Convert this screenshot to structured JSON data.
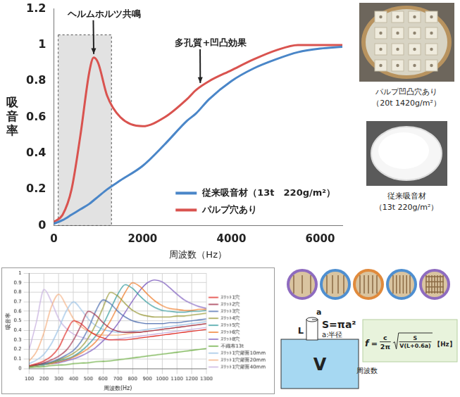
{
  "chart_data": [
    {
      "type": "line",
      "x_label": "周波数（Hz）",
      "y_label": "吸音率",
      "x": [
        0,
        200,
        400,
        600,
        800,
        900,
        1000,
        1200,
        1500,
        2000,
        2500,
        3000,
        3200,
        3500,
        4000,
        4500,
        5000,
        5500,
        6000,
        6500
      ],
      "series": [
        {
          "name": "従来吸音材（13t　220g/m²）",
          "color": "#4a86c8",
          "values": [
            0.01,
            0.03,
            0.06,
            0.09,
            0.12,
            0.14,
            0.16,
            0.2,
            0.25,
            0.33,
            0.45,
            0.58,
            0.62,
            0.7,
            0.8,
            0.87,
            0.92,
            0.96,
            0.98,
            0.99
          ]
        },
        {
          "name": "パルプ穴あり",
          "color": "#d9534f",
          "values": [
            0.02,
            0.06,
            0.2,
            0.5,
            0.85,
            0.93,
            0.9,
            0.72,
            0.6,
            0.55,
            0.6,
            0.7,
            0.75,
            0.8,
            0.86,
            0.92,
            0.97,
            1,
            1,
            1
          ]
        }
      ],
      "xlim": [
        0,
        6500
      ],
      "xticks": [
        0,
        2000,
        4000,
        6000
      ],
      "ylim": [
        0,
        1.2
      ],
      "yticks": [
        0,
        0.2,
        0.4,
        0.6,
        0.8,
        1,
        1.2
      ],
      "grid": false,
      "legend": "lower right",
      "annotations": [
        {
          "text": "ヘルムホルツ共鳴",
          "x": 900,
          "y": 0.93
        },
        {
          "text": "多孔質+凹凸効果",
          "x": 3300,
          "y": 0.77
        }
      ]
    },
    {
      "type": "line",
      "x_label": "周波数(Hz)",
      "y_label": "吸音率",
      "x": [
        100,
        150,
        200,
        250,
        300,
        350,
        400,
        450,
        500,
        550,
        600,
        650,
        700,
        750,
        800,
        850,
        900,
        950,
        1000,
        1050,
        1100,
        1150,
        1200,
        1250,
        1300
      ],
      "series": [
        {
          "name": "ｽﾘｯﾄ1穴",
          "color": "#e0302a",
          "values": [
            0.03,
            0.05,
            0.08,
            0.13,
            0.22,
            0.38,
            0.5,
            0.47,
            0.4,
            0.35,
            0.32,
            0.3,
            0.3,
            0.3,
            0.31,
            0.32,
            0.33,
            0.34,
            0.35,
            0.36,
            0.37,
            0.38,
            0.39,
            0.4,
            0.41
          ]
        },
        {
          "name": "ｽﾘｯﾄ2穴",
          "color": "#a0304a",
          "values": [
            0.03,
            0.04,
            0.06,
            0.09,
            0.13,
            0.19,
            0.3,
            0.45,
            0.6,
            0.56,
            0.48,
            0.42,
            0.39,
            0.38,
            0.38,
            0.38,
            0.39,
            0.4,
            0.41,
            0.42,
            0.43,
            0.44,
            0.45,
            0.46,
            0.47
          ]
        },
        {
          "name": "ｽﾘｯﾄ3穴",
          "color": "#4f6fb0",
          "values": [
            0.03,
            0.04,
            0.05,
            0.07,
            0.1,
            0.14,
            0.19,
            0.28,
            0.42,
            0.6,
            0.72,
            0.68,
            0.6,
            0.54,
            0.5,
            0.48,
            0.47,
            0.47,
            0.47,
            0.48,
            0.48,
            0.49,
            0.5,
            0.51,
            0.52
          ]
        },
        {
          "name": "ｽﾘｯﾄ4穴",
          "color": "#9a9a3a",
          "values": [
            0.02,
            0.03,
            0.05,
            0.06,
            0.09,
            0.12,
            0.16,
            0.22,
            0.32,
            0.46,
            0.64,
            0.8,
            0.76,
            0.68,
            0.61,
            0.57,
            0.55,
            0.54,
            0.54,
            0.54,
            0.55,
            0.55,
            0.56,
            0.57,
            0.58
          ]
        },
        {
          "name": "ｽﾘｯﾄ5穴",
          "color": "#3a9ea0",
          "values": [
            0.02,
            0.03,
            0.04,
            0.06,
            0.08,
            0.1,
            0.13,
            0.18,
            0.25,
            0.34,
            0.46,
            0.62,
            0.78,
            0.88,
            0.84,
            0.76,
            0.69,
            0.64,
            0.61,
            0.6,
            0.59,
            0.59,
            0.6,
            0.6,
            0.61
          ]
        },
        {
          "name": "ｽﾘｯﾄ6穴",
          "color": "#f08030",
          "values": [
            0.02,
            0.03,
            0.04,
            0.05,
            0.07,
            0.09,
            0.12,
            0.16,
            0.21,
            0.28,
            0.38,
            0.5,
            0.65,
            0.8,
            0.9,
            0.86,
            0.78,
            0.71,
            0.66,
            0.63,
            0.62,
            0.61,
            0.61,
            0.62,
            0.62
          ]
        },
        {
          "name": "ｽﾘｯﾄ8穴",
          "color": "#7f5fbf",
          "values": [
            0.02,
            0.03,
            0.04,
            0.05,
            0.06,
            0.08,
            0.1,
            0.13,
            0.17,
            0.22,
            0.29,
            0.37,
            0.47,
            0.59,
            0.71,
            0.82,
            0.9,
            0.93,
            0.91,
            0.85,
            0.78,
            0.72,
            0.68,
            0.65,
            0.63
          ]
        },
        {
          "name": "不織布13t",
          "color": "#6aad3f",
          "values": [
            0.01,
            0.015,
            0.02,
            0.03,
            0.035,
            0.04,
            0.05,
            0.055,
            0.06,
            0.07,
            0.075,
            0.08,
            0.09,
            0.1,
            0.11,
            0.12,
            0.13,
            0.14,
            0.15,
            0.16,
            0.17,
            0.18,
            0.19,
            0.2,
            0.21
          ]
        },
        {
          "name": "ｽﾘｯﾄ1穴背面10mm",
          "color": "#9dc3e6",
          "values": [
            0.05,
            0.09,
            0.15,
            0.26,
            0.42,
            0.6,
            0.7,
            0.62,
            0.52,
            0.45,
            0.41,
            0.39,
            0.38,
            0.38,
            0.39,
            0.4,
            0.41,
            0.42,
            0.43,
            0.44,
            0.45,
            0.46,
            0.47,
            0.48,
            0.49
          ]
        },
        {
          "name": "ｽﾘｯﾄ1穴背面20mm",
          "color": "#f4b183",
          "values": [
            0.08,
            0.18,
            0.38,
            0.65,
            0.78,
            0.66,
            0.52,
            0.44,
            0.39,
            0.36,
            0.35,
            0.35,
            0.35,
            0.36,
            0.37,
            0.38,
            0.39,
            0.4,
            0.41,
            0.42,
            0.43,
            0.44,
            0.45,
            0.46,
            0.47
          ]
        },
        {
          "name": "ｽﾘｯﾄ1穴背面40mm",
          "color": "#c9b3e0",
          "values": [
            0.2,
            0.5,
            0.83,
            0.7,
            0.52,
            0.42,
            0.36,
            0.33,
            0.31,
            0.3,
            0.3,
            0.3,
            0.31,
            0.32,
            0.33,
            0.34,
            0.35,
            0.36,
            0.37,
            0.38,
            0.39,
            0.4,
            0.41,
            0.42,
            0.43
          ]
        }
      ],
      "xlim": [
        100,
        1300
      ],
      "xticks": [
        100,
        200,
        300,
        400,
        500,
        600,
        700,
        800,
        900,
        1000,
        1100,
        1200,
        1300
      ],
      "ylim": [
        0,
        1
      ],
      "yticks": [
        0,
        0.1,
        0.2,
        0.3,
        0.4,
        0.5,
        0.6,
        0.7,
        0.8,
        0.9,
        1
      ],
      "grid": true,
      "legend": "right"
    }
  ],
  "photos": [
    {
      "caption": [
        "パルプ凹凸穴あり",
        "（20t 1420g/m²）"
      ]
    },
    {
      "caption": [
        "従来吸音材",
        "（13t 220g/m²）"
      ]
    }
  ],
  "diagram": {
    "neck_radius": "a",
    "neck_length": "L",
    "area": "S=πa²",
    "radius_note": "a:半径",
    "volume": "V",
    "formula": {
      "lhs": "f",
      "sign": "=",
      "numerator": "c",
      "denominator": "2π",
      "sqrt_numerator": "S",
      "sqrt_denominator": "V(L+0.6a)",
      "unit": "【Hz】",
      "lhs_note": "周波数"
    }
  }
}
